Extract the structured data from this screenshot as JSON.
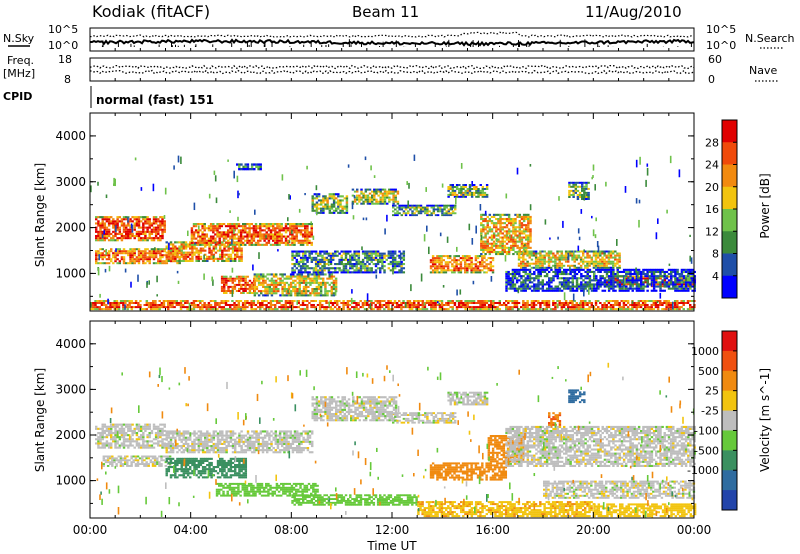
{
  "header": {
    "site": "Kodiak (fitACF)",
    "beam": "Beam 11",
    "date": "11/Aug/2010"
  },
  "ancillary": {
    "nsky_label": "N.Sky",
    "nsearch_label": "N.Search",
    "freq_label_line1": "Freq.",
    "freq_label_line2": "[MHz]",
    "nave_label": "Nave",
    "cpid_label": "CPID",
    "cpid_text": "normal (fast) 151",
    "noise_ticks_left": [
      "10^5",
      "10^0"
    ],
    "noise_ticks_right": [
      "10^5",
      "10^0"
    ],
    "freq_ticks_left": [
      "18",
      "8"
    ],
    "nave_ticks_right": [
      "60",
      "0"
    ]
  },
  "colors": {
    "power_scale": [
      "#0000ff",
      "#1f4fa8",
      "#3b8a3b",
      "#6fc24a",
      "#f2c40f",
      "#f28a0f",
      "#f04a0a",
      "#e00000"
    ],
    "velocity_scale": [
      "#2244aa",
      "#2f6ca0",
      "#3a9060",
      "#66c93a",
      "#bebebe",
      "#f2c40f",
      "#f08a10",
      "#f05010",
      "#e01010"
    ]
  },
  "chart_data": [
    {
      "type": "heatmap",
      "title": "Power",
      "xlabel": "Time UT",
      "ylabel": "Slant Range [km]",
      "x_ticks": [
        "00:00",
        "04:00",
        "08:00",
        "12:00",
        "16:00",
        "20:00",
        "00:00"
      ],
      "xlim": [
        0,
        24
      ],
      "y_ticks": [
        1000,
        2000,
        3000,
        4000
      ],
      "ylim": [
        180,
        4500
      ],
      "colorbar": {
        "label": "Power [dB]",
        "ticks": [
          4,
          8,
          12,
          16,
          20,
          24,
          28
        ],
        "range": [
          0,
          32
        ]
      },
      "echo_regions": [
        {
          "t0": 0.2,
          "t1": 3.0,
          "r0": 1700,
          "r1": 2250,
          "value": 26
        },
        {
          "t0": 0.2,
          "t1": 3.6,
          "r0": 1200,
          "r1": 1550,
          "value": 24
        },
        {
          "t0": 3.0,
          "t1": 6.0,
          "r0": 1250,
          "r1": 1700,
          "value": 22
        },
        {
          "t0": 4.0,
          "t1": 8.8,
          "r0": 1600,
          "r1": 2100,
          "value": 25
        },
        {
          "t0": 5.2,
          "t1": 6.5,
          "r0": 550,
          "r1": 950,
          "value": 27
        },
        {
          "t0": 6.5,
          "t1": 9.8,
          "r0": 500,
          "r1": 1000,
          "value": 18
        },
        {
          "t0": 5.8,
          "t1": 6.8,
          "r0": 3250,
          "r1": 3400,
          "value": 10
        },
        {
          "t0": 8.8,
          "t1": 10.2,
          "r0": 2300,
          "r1": 2750,
          "value": 14
        },
        {
          "t0": 10.4,
          "t1": 12.2,
          "r0": 2500,
          "r1": 2850,
          "value": 16
        },
        {
          "t0": 12.0,
          "t1": 14.5,
          "r0": 2250,
          "r1": 2500,
          "value": 12
        },
        {
          "t0": 14.2,
          "t1": 15.8,
          "r0": 2650,
          "r1": 2950,
          "value": 14
        },
        {
          "t0": 8.0,
          "t1": 12.5,
          "r0": 1000,
          "r1": 1500,
          "value": 10
        },
        {
          "t0": 13.5,
          "t1": 16.0,
          "r0": 1000,
          "r1": 1400,
          "value": 23
        },
        {
          "t0": 15.5,
          "t1": 17.5,
          "r0": 1400,
          "r1": 2300,
          "value": 20
        },
        {
          "t0": 17.0,
          "t1": 21.0,
          "r0": 1100,
          "r1": 1500,
          "value": 18
        },
        {
          "t0": 20.5,
          "t1": 24.0,
          "r0": 700,
          "r1": 950,
          "value": 28
        },
        {
          "t0": 19.0,
          "t1": 19.8,
          "r0": 2600,
          "r1": 3000,
          "value": 12
        },
        {
          "t0": 16.5,
          "t1": 24.0,
          "r0": 600,
          "r1": 1100,
          "value": 6
        },
        {
          "t0": 0.0,
          "t1": 24.0,
          "r0": 200,
          "r1": 420,
          "value": 27
        }
      ]
    },
    {
      "type": "heatmap",
      "title": "Velocity",
      "xlabel": "Time UT",
      "ylabel": "Slant Range [km]",
      "x_ticks": [
        "00:00",
        "04:00",
        "08:00",
        "12:00",
        "16:00",
        "20:00",
        "00:00"
      ],
      "xlim": [
        0,
        24
      ],
      "y_ticks": [
        1000,
        2000,
        3000,
        4000
      ],
      "ylim": [
        180,
        4500
      ],
      "colorbar": {
        "label": "Velocity [m s^-1]",
        "ticks": [
          1000,
          500,
          25,
          -25,
          -100,
          -500,
          -1000
        ]
      },
      "echo_regions": [
        {
          "t0": 0.2,
          "t1": 3.0,
          "r0": 1700,
          "r1": 2250,
          "value": 0
        },
        {
          "t0": 3.0,
          "t1": 8.8,
          "r0": 1600,
          "r1": 2100,
          "value": 0
        },
        {
          "t0": 0.5,
          "t1": 3.2,
          "r0": 1300,
          "r1": 1550,
          "value": 0
        },
        {
          "t0": 3.0,
          "t1": 6.2,
          "r0": 1050,
          "r1": 1500,
          "value": 300
        },
        {
          "t0": 5.0,
          "t1": 9.0,
          "r0": 650,
          "r1": 950,
          "value": 200
        },
        {
          "t0": 8.0,
          "t1": 13.0,
          "r0": 450,
          "r1": 700,
          "value": 120
        },
        {
          "t0": 8.8,
          "t1": 12.2,
          "r0": 2300,
          "r1": 2850,
          "value": 0
        },
        {
          "t0": 12.0,
          "t1": 14.5,
          "r0": 2250,
          "r1": 2500,
          "value": 0
        },
        {
          "t0": 14.2,
          "t1": 15.8,
          "r0": 2650,
          "r1": 2950,
          "value": 0
        },
        {
          "t0": 13.5,
          "t1": 16.5,
          "r0": 1000,
          "r1": 1400,
          "value": -300
        },
        {
          "t0": 15.8,
          "t1": 17.2,
          "r0": 1400,
          "r1": 2000,
          "value": -400
        },
        {
          "t0": 16.5,
          "t1": 24.0,
          "r0": 1300,
          "r1": 2200,
          "value": 0
        },
        {
          "t0": 18.0,
          "t1": 24.0,
          "r0": 600,
          "r1": 1000,
          "value": 0
        },
        {
          "t0": 13.0,
          "t1": 20.0,
          "r0": 200,
          "r1": 550,
          "value": -80
        },
        {
          "t0": 20.0,
          "t1": 24.0,
          "r0": 200,
          "r1": 500,
          "value": -60
        },
        {
          "t0": 19.0,
          "t1": 19.6,
          "r0": 2700,
          "r1": 3000,
          "value": 600
        },
        {
          "t0": 18.2,
          "t1": 18.7,
          "r0": 2200,
          "r1": 2500,
          "value": -500
        }
      ]
    }
  ]
}
